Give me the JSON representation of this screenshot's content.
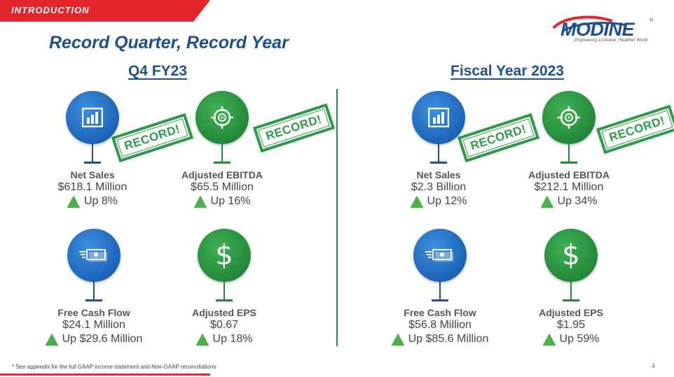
{
  "header": {
    "section_label": "INTRODUCTION",
    "title": "Record Quarter, Record Year"
  },
  "logo": {
    "name": "MODINE",
    "registered": "®",
    "tagline": "Engineering a Cleaner, Healthier World"
  },
  "colors": {
    "brand_blue": "#1e4f8f",
    "accent_red": "#e3262b",
    "record_green": "#2d9b45",
    "up_arrow_green": "#4cb04a"
  },
  "sections": [
    {
      "title": "Q4 FY23",
      "metrics": [
        {
          "icon": "bar-chart-icon",
          "label": "Net Sales",
          "value": "$618.1 Million",
          "change": "Up 8%",
          "record": "RECORD!"
        },
        {
          "icon": "target-icon",
          "label": "Adjusted EBITDA",
          "value": "$65.5 Million",
          "change": "Up 16%",
          "record": "RECORD!"
        },
        {
          "icon": "cash-icon",
          "label": "Free Cash Flow",
          "value": "$24.1 Million",
          "change": "Up $29.6 Million"
        },
        {
          "icon": "dollar-icon",
          "label": "Adjusted EPS",
          "value": "$0.67",
          "change": "Up 18%"
        }
      ]
    },
    {
      "title": "Fiscal Year 2023",
      "metrics": [
        {
          "icon": "bar-chart-icon",
          "label": "Net Sales",
          "value": "$2.3 Billion",
          "change": "Up 12%",
          "record": "RECORD!"
        },
        {
          "icon": "target-icon",
          "label": "Adjusted EBITDA",
          "value": "$212.1 Million",
          "change": "Up 34%",
          "record": "RECORD!"
        },
        {
          "icon": "cash-icon",
          "label": "Free Cash Flow",
          "value": "$56.8 Million",
          "change": "Up $85.6 Million"
        },
        {
          "icon": "dollar-icon",
          "label": "Adjusted EPS",
          "value": "$1.95",
          "change": "Up 59%"
        }
      ]
    }
  ],
  "dollar_symbol": "$",
  "footnote": "* See appendix for the full GAAP income statement and Non-GAAP reconciliations",
  "page_number": "4"
}
